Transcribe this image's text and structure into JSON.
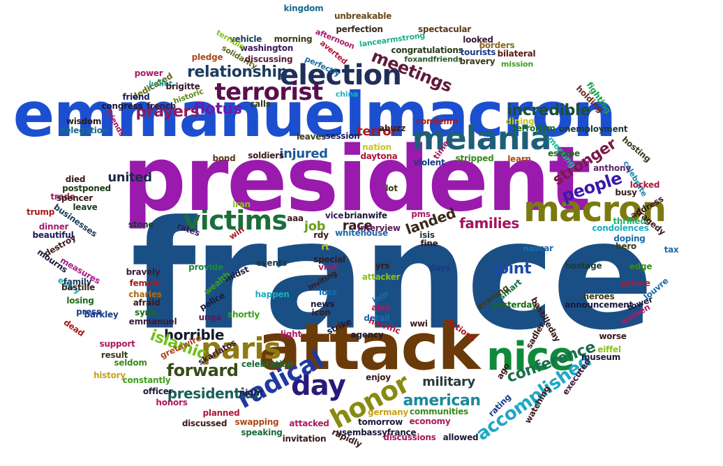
{
  "words": [
    {
      "text": "france",
      "color": "#1a4f85"
    },
    {
      "text": "president",
      "color": "#9a1aad"
    },
    {
      "text": "emmanuelmacron",
      "color": "#1c4fcf"
    },
    {
      "text": "attack",
      "color": "#6b3a09"
    },
    {
      "text": "melania",
      "color": "#1d5f7a"
    },
    {
      "text": "macron",
      "color": "#7a7a10"
    },
    {
      "text": "nice",
      "color": "#0f8a3a"
    },
    {
      "text": "election",
      "color": "#202f5a"
    },
    {
      "text": "terrorist",
      "color": "#5a0f4a"
    },
    {
      "text": "paris",
      "color": "#8f7a10"
    },
    {
      "text": "day",
      "color": "#2a1a7a"
    },
    {
      "text": "honor",
      "color": "#8a8a10"
    },
    {
      "text": "victims",
      "color": "#1b6e3a"
    },
    {
      "text": "radical",
      "color": "#1f3a9f"
    },
    {
      "text": "relationship",
      "color": "#1d3a5f"
    },
    {
      "text": "meetings",
      "color": "#5f1a3a"
    },
    {
      "text": "accomplished",
      "color": "#1fa7c8"
    },
    {
      "text": "conference",
      "color": "#1a6f4a"
    },
    {
      "text": "prayers",
      "color": "#8f1a5a"
    },
    {
      "text": "flotus",
      "color": "#6f1aaa"
    },
    {
      "text": "incredible",
      "color": "#1a4f3a"
    },
    {
      "text": "stronger",
      "color": "#7a1a4a"
    },
    {
      "text": "people",
      "color": "#3a1aaa"
    },
    {
      "text": "families",
      "color": "#a3155a"
    },
    {
      "text": "landed",
      "color": "#3a2a1a"
    },
    {
      "text": "forward",
      "color": "#3a4a1a"
    },
    {
      "text": "horrible",
      "color": "#111a2a"
    },
    {
      "text": "islamic",
      "color": "#6fc21a"
    },
    {
      "text": "presidential",
      "color": "#1a5f5a"
    },
    {
      "text": "american",
      "color": "#1a8a9a"
    },
    {
      "text": "military",
      "color": "#2a3a3a"
    },
    {
      "text": "united",
      "color": "#1a2a4a"
    },
    {
      "text": "injured",
      "color": "#1a5a9a"
    },
    {
      "text": "race",
      "color": "#3a1a1a"
    },
    {
      "text": "job",
      "color": "#6aa01a"
    },
    {
      "text": "terror",
      "color": "#aa1a1a"
    },
    {
      "text": "joint",
      "color": "#1a4aaa"
    },
    {
      "text": "kingdom",
      "color": "#1a6a8a"
    },
    {
      "text": "unbreakable",
      "color": "#6a4a1a"
    },
    {
      "text": "perfection",
      "color": "#3a2a1a"
    },
    {
      "text": "spectacular",
      "color": "#5a3a1a"
    },
    {
      "text": "lancearmstrong",
      "color": "#1ab08a"
    },
    {
      "text": "vehicle",
      "color": "#1a3a5a"
    },
    {
      "text": "morning",
      "color": "#3a3a1a"
    },
    {
      "text": "afternoon",
      "color": "#aa1a6a"
    },
    {
      "text": "washington",
      "color": "#3a1a5a"
    },
    {
      "text": "terrible",
      "color": "#8ac21a"
    },
    {
      "text": "solidarity",
      "color": "#5a6a1a"
    },
    {
      "text": "pledge",
      "color": "#aa4a1a"
    },
    {
      "text": "discussing",
      "color": "#5a1a3a"
    },
    {
      "text": "averted",
      "color": "#aa1a3a"
    },
    {
      "text": "perfectly",
      "color": "#1a6aaa"
    },
    {
      "text": "congratulations",
      "color": "#2a3a1a"
    },
    {
      "text": "foxandfriends",
      "color": "#2a5a2a"
    },
    {
      "text": "looked",
      "color": "#3a1a3a"
    },
    {
      "text": "tourists",
      "color": "#1a3a8a"
    },
    {
      "text": "borders",
      "color": "#8a6a1a"
    },
    {
      "text": "bravery",
      "color": "#3a3a1a"
    },
    {
      "text": "bilateral",
      "color": "#5a1a1a"
    },
    {
      "text": "mission",
      "color": "#3aa01a"
    },
    {
      "text": "power",
      "color": "#aa1a6a"
    },
    {
      "text": "dedicated",
      "color": "#5a6a1a"
    },
    {
      "text": "juillet",
      "color": "#1aa08a"
    },
    {
      "text": "brigitte",
      "color": "#3a1a2a"
    },
    {
      "text": "friend",
      "color": "#1a1a5a"
    },
    {
      "text": "historic",
      "color": "#5a8a1a"
    },
    {
      "text": "congress",
      "color": "#1a1a3a"
    },
    {
      "text": "french",
      "color": "#3a1a3a"
    },
    {
      "text": "calls",
      "color": "#3a3a1a"
    },
    {
      "text": "china",
      "color": "#1ab0c0"
    },
    {
      "text": "fighting",
      "color": "#1aa04a"
    },
    {
      "text": "holding",
      "color": "#6a2a1a"
    },
    {
      "text": "wisdom",
      "color": "#2a1a1a"
    },
    {
      "text": "friends",
      "color": "#aa1a5a"
    },
    {
      "text": "delegation",
      "color": "#1a6a8a"
    },
    {
      "text": "condemn",
      "color": "#aa1a1a"
    },
    {
      "text": "dining",
      "color": "#c8c81a"
    },
    {
      "text": "terrorism",
      "color": "#1a6a1a"
    },
    {
      "text": "unemployment",
      "color": "#1a3a3a"
    },
    {
      "text": "abuzz",
      "color": "#3a1a1a"
    },
    {
      "text": "session",
      "color": "#1a1a5a"
    },
    {
      "text": "leaves",
      "color": "#3a3a1a"
    },
    {
      "text": "nation",
      "color": "#c8c81a"
    },
    {
      "text": "time",
      "color": "#aa1a6a"
    },
    {
      "text": "hosting",
      "color": "#3a3a1a"
    },
    {
      "text": "meeting",
      "color": "#1ac0a0"
    },
    {
      "text": "escape",
      "color": "#1a6a1a"
    },
    {
      "text": "celebrate",
      "color": "#1a8aaa"
    },
    {
      "text": "learn",
      "color": "#aa4a1a"
    },
    {
      "text": "soldiers",
      "color": "#3a1a1a"
    },
    {
      "text": "daytona",
      "color": "#aa1a3a"
    },
    {
      "text": "violent",
      "color": "#1a3a8a"
    },
    {
      "text": "stripped",
      "color": "#3a8a1a"
    },
    {
      "text": "anthony",
      "color": "#5a2a6a"
    },
    {
      "text": "bond",
      "color": "#5a3a1a"
    },
    {
      "text": "died",
      "color": "#3a1a1a"
    },
    {
      "text": "postponed",
      "color": "#1a3a1a"
    },
    {
      "text": "busy",
      "color": "#3a1a1a"
    },
    {
      "text": "locked",
      "color": "#aa1a3a"
    },
    {
      "text": "trade",
      "color": "#aa1a5a"
    },
    {
      "text": "spencer",
      "color": "#3a1a1a"
    },
    {
      "text": "lot",
      "color": "#3a3a1a"
    },
    {
      "text": "address",
      "color": "#3a1a1a"
    },
    {
      "text": "leave",
      "color": "#1a3a1a"
    },
    {
      "text": "iran",
      "color": "#8ac21a"
    },
    {
      "text": "trump",
      "color": "#aa1a1a"
    },
    {
      "text": "businesses",
      "color": "#1a3a5a"
    },
    {
      "text": "pms",
      "color": "#aa1a6a"
    },
    {
      "text": "vice",
      "color": "#3a1a5a"
    },
    {
      "text": "brianwife",
      "color": "#1a1a3a"
    },
    {
      "text": "thrilled",
      "color": "#1ab06a"
    },
    {
      "text": "tragedy",
      "color": "#3a1a1a"
    },
    {
      "text": "stone",
      "color": "#1a3a3a"
    },
    {
      "text": "dinner",
      "color": "#aa1a6a"
    },
    {
      "text": "rates",
      "color": "#3a1a5a"
    },
    {
      "text": "win",
      "color": "#aa1a1a"
    },
    {
      "text": "aaa",
      "color": "#3a1a1a"
    },
    {
      "text": "condolences",
      "color": "#1ab0c0"
    },
    {
      "text": "beautiful",
      "color": "#1a1a5a"
    },
    {
      "text": "rdy",
      "color": "#3a1a1a"
    },
    {
      "text": "isis",
      "color": "#1a3a3a"
    },
    {
      "text": "destroy",
      "color": "#3a1a1a"
    },
    {
      "text": "interview",
      "color": "#5a1a5a"
    },
    {
      "text": "rt",
      "color": "#c8c81a"
    },
    {
      "text": "fine",
      "color": "#3a1a1a"
    },
    {
      "text": "nascar",
      "color": "#1a6aaa"
    },
    {
      "text": "hero",
      "color": "#3a3a1a"
    },
    {
      "text": "doping",
      "color": "#1a6aaa"
    },
    {
      "text": "mourns",
      "color": "#1a1a3a"
    },
    {
      "text": "measures",
      "color": "#aa1a8a"
    },
    {
      "text": "provide",
      "color": "#1a8a3a"
    },
    {
      "text": "events",
      "color": "#1a3a3a"
    },
    {
      "text": "special",
      "color": "#3a1a1a"
    },
    {
      "text": "visit",
      "color": "#aa1a6a"
    },
    {
      "text": "yrs",
      "color": "#3a1a1a"
    },
    {
      "text": "days",
      "color": "#1a3a8a"
    },
    {
      "text": "tax",
      "color": "#1a6aaa"
    },
    {
      "text": "hostage",
      "color": "#1a3a3a"
    },
    {
      "text": "edge",
      "color": "#3a8a1a"
    },
    {
      "text": "entry",
      "color": "#1ab0c0"
    },
    {
      "text": "bravely",
      "color": "#3a1a3a"
    },
    {
      "text": "midst",
      "color": "#1a1a3a"
    },
    {
      "text": "attacker",
      "color": "#8ac21a"
    },
    {
      "text": "family",
      "color": "#1a3a5a"
    },
    {
      "text": "bastille",
      "color": "#3a1a1a"
    },
    {
      "text": "female",
      "color": "#aa1a1a"
    },
    {
      "text": "wealth",
      "color": "#3aa01a"
    },
    {
      "text": "inviting",
      "color": "#3a1a1a"
    },
    {
      "text": "loss",
      "color": "#1a6aaa"
    },
    {
      "text": "join",
      "color": "#1a6aaa"
    },
    {
      "text": "grieve",
      "color": "#aa1a3a"
    },
    {
      "text": "louvre",
      "color": "#1a6aaa"
    },
    {
      "text": "charles",
      "color": "#aa6a1a"
    },
    {
      "text": "afraid",
      "color": "#3a1a1a"
    },
    {
      "text": "losing",
      "color": "#1a6a1a"
    },
    {
      "text": "evening",
      "color": "#3a3a1a"
    },
    {
      "text": "smart",
      "color": "#1a6a3a"
    },
    {
      "text": "yesterday",
      "color": "#1a6a1a"
    },
    {
      "text": "heroes",
      "color": "#3a3a1a"
    },
    {
      "text": "announcement",
      "color": "#1a1a3a"
    },
    {
      "text": "tower",
      "color": "#1a1a3a"
    },
    {
      "text": "women",
      "color": "#aa1a6a"
    },
    {
      "text": "press",
      "color": "#1a3a8a"
    },
    {
      "text": "syria",
      "color": "#1a6a1a"
    },
    {
      "text": "police",
      "color": "#1a1a3a"
    },
    {
      "text": "happen",
      "color": "#1ab0c0"
    },
    {
      "text": "news",
      "color": "#1a1a3a"
    },
    {
      "text": "icon",
      "color": "#3a1a1a"
    },
    {
      "text": "alex",
      "color": "#aa1a5a"
    },
    {
      "text": "detail",
      "color": "#1a6aaa"
    },
    {
      "text": "dead",
      "color": "#aa1a1a"
    },
    {
      "text": "emmanuel",
      "color": "#3a1a3a"
    },
    {
      "text": "unga",
      "color": "#5a1a5a"
    },
    {
      "text": "shortly",
      "color": "#3aa01a"
    },
    {
      "text": "light",
      "color": "#aa1a6a"
    },
    {
      "text": "strike",
      "color": "#1a1a3a"
    },
    {
      "text": "horrific",
      "color": "#aa1a3a"
    },
    {
      "text": "actions",
      "color": "#aa1a1a"
    },
    {
      "text": "bastilleday",
      "color": "#3a1a1a"
    },
    {
      "text": "barkley",
      "color": "#1a3a8a"
    },
    {
      "text": "agency",
      "color": "#1a1a3a"
    },
    {
      "text": "wwi",
      "color": "#3a1a1a"
    },
    {
      "text": "sadler",
      "color": "#3a1a1a"
    },
    {
      "text": "worse",
      "color": "#3a1a1a"
    },
    {
      "text": "support",
      "color": "#aa1a5a"
    },
    {
      "text": "result",
      "color": "#3a3a1a"
    },
    {
      "text": "gretawire",
      "color": "#aa4a1a"
    },
    {
      "text": "skarlatos",
      "color": "#3a1a3a"
    },
    {
      "text": "eiffel",
      "color": "#8ac21a"
    },
    {
      "text": "museum",
      "color": "#1a1a3a"
    },
    {
      "text": "seldom",
      "color": "#3a8a1a"
    },
    {
      "text": "celebration",
      "color": "#1a6a3a"
    },
    {
      "text": "ago",
      "color": "#3a1a1a"
    },
    {
      "text": "executed",
      "color": "#3a1a3a"
    },
    {
      "text": "history",
      "color": "#c8a01a"
    },
    {
      "text": "constantly",
      "color": "#3aa01a"
    },
    {
      "text": "enjoy",
      "color": "#3a1a1a"
    },
    {
      "text": "officer",
      "color": "#1a1a3a"
    },
    {
      "text": "night",
      "color": "#1a1a5a"
    },
    {
      "text": "rating",
      "color": "#1a3a8a"
    },
    {
      "text": "watching",
      "color": "#3a1a1a"
    },
    {
      "text": "honors",
      "color": "#aa1a5a"
    },
    {
      "text": "planned",
      "color": "#aa1a3a"
    },
    {
      "text": "germany",
      "color": "#c8a01a"
    },
    {
      "text": "communities",
      "color": "#3a8a1a"
    },
    {
      "text": "discussed",
      "color": "#3a1a1a"
    },
    {
      "text": "swapping",
      "color": "#aa4a1a"
    },
    {
      "text": "attacked",
      "color": "#aa1a5a"
    },
    {
      "text": "tomorrow",
      "color": "#1a1a3a"
    },
    {
      "text": "economy",
      "color": "#aa1a5a"
    },
    {
      "text": "speaking",
      "color": "#1a6a3a"
    },
    {
      "text": "usembassyfrance",
      "color": "#1a1a3a"
    },
    {
      "text": "invitation",
      "color": "#3a1a1a"
    },
    {
      "text": "rapidly",
      "color": "#3a1a1a"
    },
    {
      "text": "discussions",
      "color": "#aa1a5a"
    },
    {
      "text": "allowed",
      "color": "#1a1a3a"
    },
    {
      "text": "whitehouse",
      "color": "#1a6aaa"
    }
  ]
}
